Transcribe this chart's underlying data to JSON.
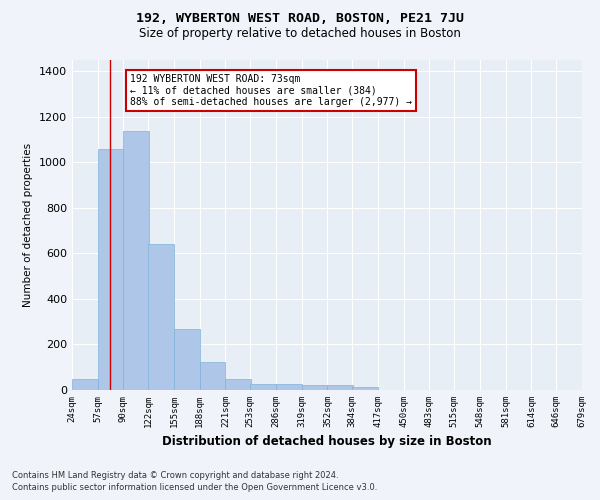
{
  "title": "192, WYBERTON WEST ROAD, BOSTON, PE21 7JU",
  "subtitle": "Size of property relative to detached houses in Boston",
  "xlabel": "Distribution of detached houses by size in Boston",
  "ylabel": "Number of detached properties",
  "bar_color": "#aec6e8",
  "bar_edge_color": "#7fb3d9",
  "bg_color": "#e8eef6",
  "grid_color": "#ffffff",
  "annotation_box_color": "#cc0000",
  "annotation_line1": "192 WYBERTON WEST ROAD: 73sqm",
  "annotation_line2": "← 11% of detached houses are smaller (384)",
  "annotation_line3": "88% of semi-detached houses are larger (2,977) →",
  "vline_x": 73,
  "vline_color": "#cc0000",
  "bins": [
    24,
    57,
    90,
    122,
    155,
    188,
    221,
    253,
    286,
    319,
    352,
    384,
    417,
    450,
    483,
    515,
    548,
    581,
    614,
    646,
    679
  ],
  "bin_labels": [
    "24sqm",
    "57sqm",
    "90sqm",
    "122sqm",
    "155sqm",
    "188sqm",
    "221sqm",
    "253sqm",
    "286sqm",
    "319sqm",
    "352sqm",
    "384sqm",
    "417sqm",
    "450sqm",
    "483sqm",
    "515sqm",
    "548sqm",
    "581sqm",
    "614sqm",
    "646sqm",
    "679sqm"
  ],
  "values": [
    48,
    1060,
    1140,
    640,
    270,
    125,
    50,
    28,
    25,
    22,
    20,
    15,
    0,
    0,
    0,
    0,
    0,
    0,
    0,
    0
  ],
  "ylim": [
    0,
    1450
  ],
  "yticks": [
    0,
    200,
    400,
    600,
    800,
    1000,
    1200,
    1400
  ],
  "footnote1": "Contains HM Land Registry data © Crown copyright and database right 2024.",
  "footnote2": "Contains public sector information licensed under the Open Government Licence v3.0.",
  "fig_bg": "#f0f4fa"
}
